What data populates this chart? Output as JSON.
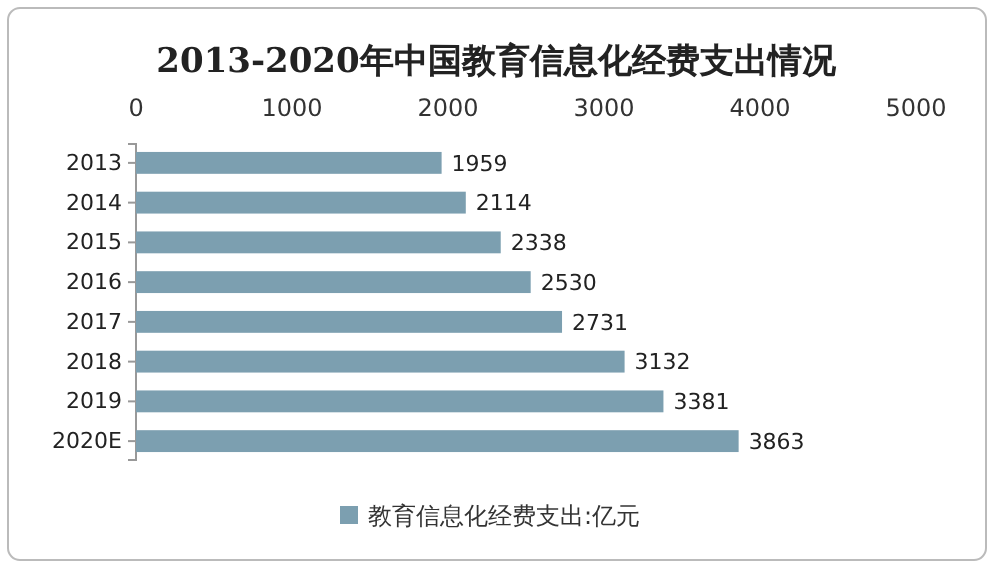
{
  "chart_data": {
    "type": "bar",
    "orientation": "horizontal",
    "title": "2013-2020年中国教育信息化经费支出情况",
    "categories": [
      "2013",
      "2014",
      "2015",
      "2016",
      "2017",
      "2018",
      "2019",
      "2020E"
    ],
    "series": [
      {
        "name": "教育信息化经费支出:亿元",
        "color": "#7c9fb0",
        "values": [
          1959,
          2114,
          2338,
          2530,
          2731,
          3132,
          3381,
          3863
        ]
      }
    ],
    "xlim": [
      0,
      5000
    ],
    "xticks": [
      0,
      1000,
      2000,
      3000,
      4000,
      5000
    ],
    "data_labels": true,
    "legend": "bottom",
    "grid": false
  }
}
